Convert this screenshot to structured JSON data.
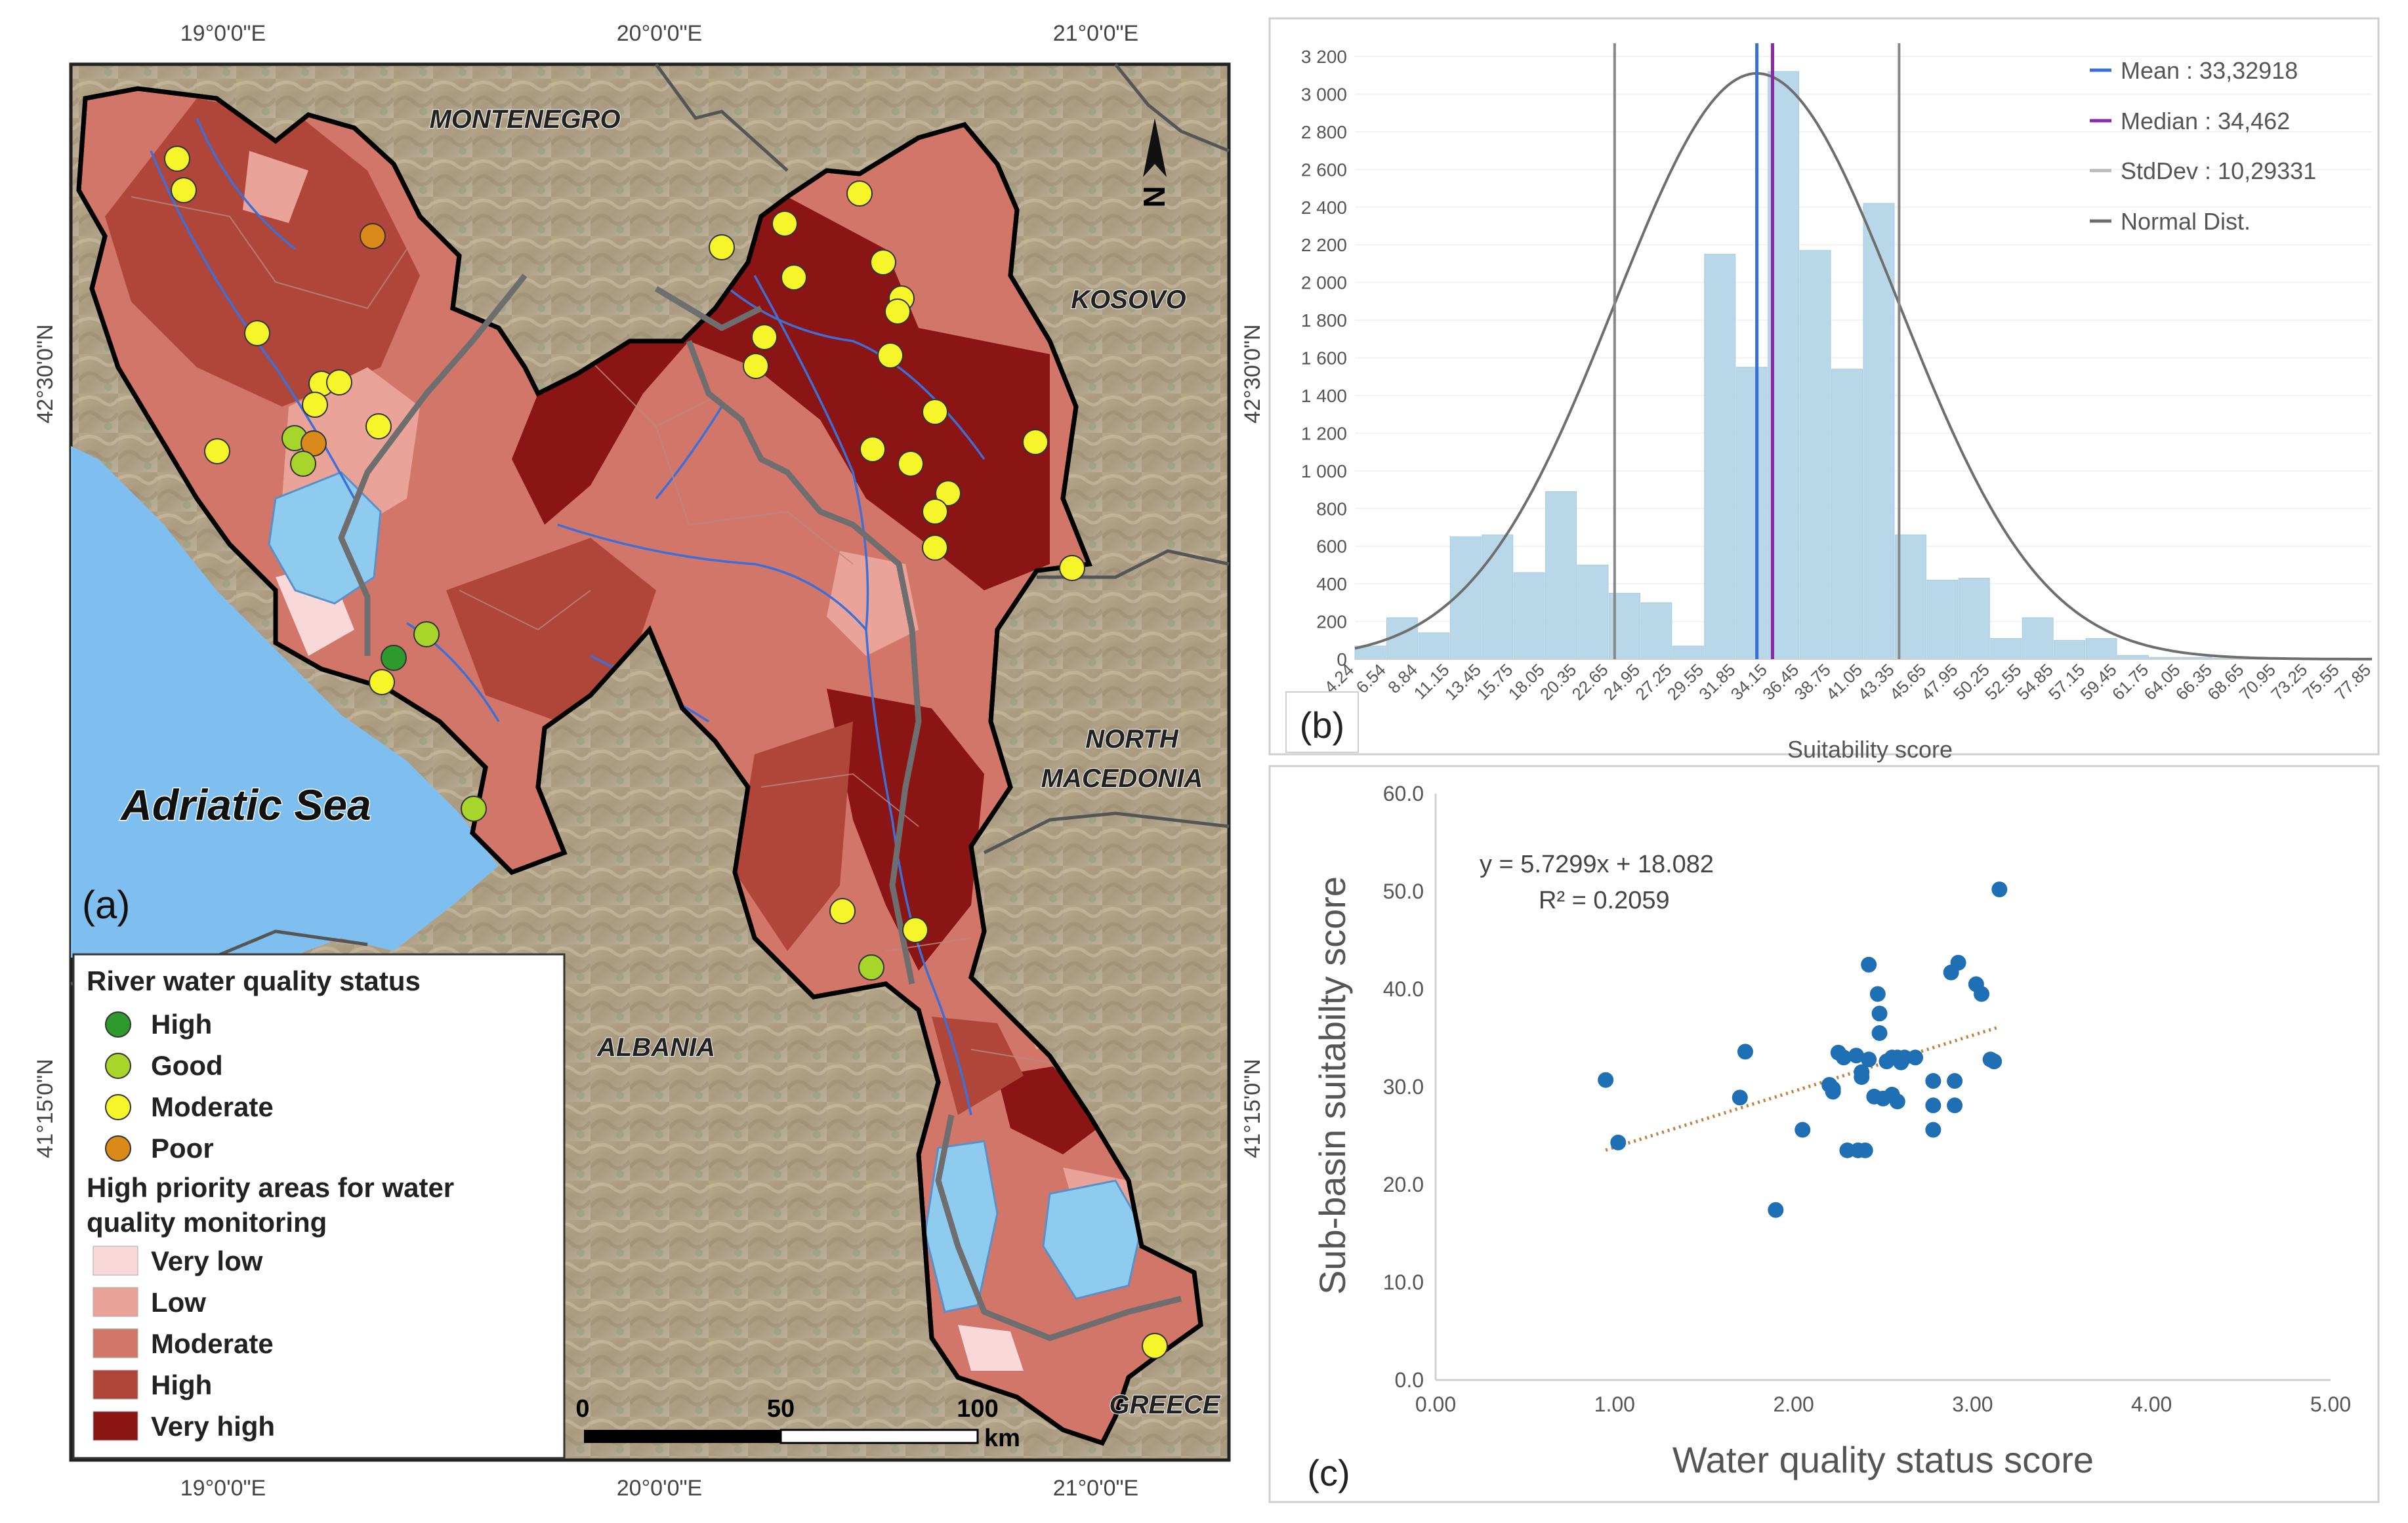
{
  "colors": {
    "high": "#2e9a2e",
    "good": "#a8d52a",
    "moderate": "#f6f52a",
    "poor": "#d98a18",
    "very_low": "#f8d8d8",
    "low": "#e9a399",
    "moderate_area": "#d2766a",
    "high_area": "#b0463a",
    "very_high": "#8b1414",
    "sea": "#7fbfef",
    "histogram_bar": "#b8d8ea",
    "mean_line": "#3a6fd8",
    "median_line": "#8a2aa8",
    "stddev_line": "#888888",
    "normal_curve": "#6e6e6e",
    "scatter_point": "#1f6fb5",
    "trendline": "#c08040"
  },
  "map": {
    "panel_label": "(a)",
    "longitude_labels": [
      "19°0'0\"E",
      "20°0'0\"E",
      "21°0'0\"E"
    ],
    "latitude_labels": [
      "42°30'0\"N",
      "41°15'0\"N"
    ],
    "place_labels": [
      "MONTENEGRO",
      "KOSOVO",
      "NORTH",
      "MACEDONIA",
      "ALBANIA",
      "GREECE",
      "Adriatic Sea"
    ],
    "north_arrow": "N",
    "scale_bar": {
      "labels": [
        "0",
        "50",
        "100"
      ],
      "unit": "km"
    },
    "legend": {
      "title_points": "River water quality status",
      "point_items": [
        "High",
        "Good",
        "Moderate",
        "Poor"
      ],
      "title_areas_line1": "High priority areas for water",
      "title_areas_line2": "quality monitoring",
      "area_items": [
        "Very low",
        "Low",
        "Moderate",
        "High",
        "Very high"
      ]
    }
  },
  "chart_data": [
    {
      "type": "bar",
      "panel_label": "(b)",
      "title": "",
      "xlabel": "Suitability score",
      "ylabel": "",
      "ylim": [
        0,
        3200
      ],
      "yticks": [
        "0",
        "200",
        "400",
        "600",
        "800",
        "1 000",
        "1 200",
        "1 400",
        "1 600",
        "1 800",
        "2 000",
        "2 200",
        "2 400",
        "2 600",
        "2 800",
        "3 000",
        "3 200"
      ],
      "xticks": [
        "4.24",
        "6.54",
        "8.84",
        "11.15",
        "13.45",
        "15.75",
        "18.05",
        "20.35",
        "22.65",
        "24.95",
        "27.25",
        "29.55",
        "31.85",
        "34.15",
        "36.45",
        "38.75",
        "41.05",
        "43.35",
        "45.65",
        "47.95",
        "50.25",
        "52.55",
        "54.85",
        "57.15",
        "59.45",
        "61.75",
        "64.05",
        "66.35",
        "68.65",
        "70.95",
        "73.25",
        "75.55",
        "77.85"
      ],
      "bin_start": 4.24,
      "bin_width": 2.3,
      "values": [
        70,
        220,
        140,
        650,
        660,
        460,
        890,
        500,
        350,
        300,
        70,
        2150,
        1550,
        3120,
        2170,
        1540,
        2420,
        660,
        420,
        430,
        110,
        220,
        100,
        110,
        20,
        10,
        10,
        5,
        5,
        5,
        5,
        5
      ],
      "mean": 33.32918,
      "median": 34.462,
      "stddev": 10.29331,
      "normal_peak": 3110,
      "legend": [
        "Mean : 33,32918",
        "Median : 34,462",
        "StdDev : 10,29331",
        "Normal Dist."
      ]
    },
    {
      "type": "scatter",
      "panel_label": "(c)",
      "xlabel": "Water quality status score",
      "ylabel": "Sub-basin suitabilty score",
      "xlim": [
        0,
        5
      ],
      "ylim": [
        0,
        60
      ],
      "xticks": [
        "0.00",
        "1.00",
        "2.00",
        "3.00",
        "4.00",
        "5.00"
      ],
      "yticks": [
        "0.0",
        "10.0",
        "20.0",
        "30.0",
        "40.0",
        "50.0",
        "60.0"
      ],
      "equation": "y = 5.7299x + 18.082",
      "r_squared": "R² = 0.2059",
      "trend": {
        "slope": 5.7299,
        "intercept": 18.082,
        "x_range": [
          0.95,
          3.15
        ]
      },
      "x": [
        0.95,
        1.02,
        1.7,
        1.73,
        1.9,
        2.05,
        2.2,
        2.22,
        2.22,
        2.25,
        2.28,
        2.3,
        2.35,
        2.36,
        2.38,
        2.38,
        2.4,
        2.42,
        2.42,
        2.45,
        2.47,
        2.48,
        2.48,
        2.5,
        2.52,
        2.55,
        2.55,
        2.58,
        2.58,
        2.6,
        2.62,
        2.68,
        2.78,
        2.78,
        2.78,
        2.88,
        2.9,
        2.9,
        2.92,
        3.02,
        3.05,
        3.1,
        3.12,
        3.15
      ],
      "y": [
        30.7,
        24.3,
        28.9,
        33.6,
        17.4,
        25.6,
        30.2,
        29.5,
        29.8,
        33.5,
        33.0,
        23.5,
        33.2,
        23.5,
        31.5,
        31.0,
        23.5,
        32.8,
        42.5,
        29.0,
        39.5,
        37.5,
        35.5,
        28.8,
        32.6,
        29.2,
        33.0,
        33.0,
        28.5,
        32.5,
        33.0,
        33.0,
        28.1,
        30.6,
        25.6,
        41.7,
        28.1,
        30.6,
        42.7,
        40.5,
        39.5,
        32.8,
        32.6,
        50.2
      ]
    }
  ]
}
